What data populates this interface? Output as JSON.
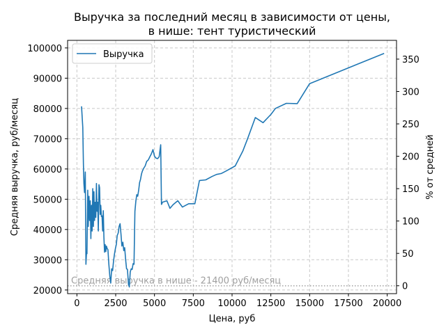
{
  "chart_data": {
    "type": "line",
    "title_line1": "Выручка за последний месяц в зависимости от цены,",
    "title_line2": "в нише: тент туристический",
    "xlabel": "Цена, руб",
    "ylabel": "Средняя выручка, руб/месяц",
    "ylabel_right": "% от средней",
    "xlim": [
      -600,
      20600
    ],
    "ylim": [
      18800,
      102500
    ],
    "x_ticks": [
      0,
      2500,
      5000,
      7500,
      10000,
      12500,
      15000,
      17500,
      20000
    ],
    "y_ticks": [
      20000,
      30000,
      40000,
      50000,
      60000,
      70000,
      80000,
      90000,
      100000
    ],
    "y2_ticks": [
      0,
      50,
      100,
      150,
      200,
      250,
      300,
      350
    ],
    "grid": true,
    "legend_position": "top-left",
    "average": {
      "value": 21400,
      "label": "Средняя выручка в нише - 21400 руб/месяц"
    },
    "series": [
      {
        "name": "Выручка",
        "color": "#1f77b4",
        "x": [
          300,
          380,
          420,
          450,
          490,
          540,
          580,
          620,
          650,
          700,
          730,
          780,
          820,
          860,
          900,
          940,
          980,
          1020,
          1060,
          1100,
          1140,
          1180,
          1220,
          1260,
          1300,
          1340,
          1380,
          1420,
          1460,
          1500,
          1540,
          1580,
          1620,
          1660,
          1700,
          1740,
          1780,
          1820,
          1860,
          1900,
          1950,
          2000,
          2060,
          2120,
          2180,
          2240,
          2300,
          2360,
          2420,
          2480,
          2540,
          2600,
          2660,
          2720,
          2780,
          2840,
          2900,
          2960,
          3020,
          3080,
          3140,
          3200,
          3260,
          3320,
          3380,
          3440,
          3500,
          3560,
          3620,
          3680,
          3740,
          3800,
          3860,
          3920,
          3980,
          4040,
          4100,
          4160,
          4220,
          4300,
          4400,
          4500,
          4600,
          4700,
          4800,
          4900,
          5000,
          5100,
          5200,
          5300,
          5400,
          5450,
          5480,
          5500,
          5800,
          6000,
          6200,
          6500,
          6800,
          7200,
          7600,
          7900,
          8300,
          8700,
          9000,
          9300,
          9600,
          10200,
          10700,
          11000,
          11500,
          12000,
          12500,
          12800,
          13500,
          14200,
          15000,
          19800
        ],
        "y": [
          80700,
          73700,
          61500,
          55200,
          52200,
          59000,
          28500,
          32500,
          32000,
          53000,
          41000,
          51000,
          43000,
          49500,
          37000,
          48000,
          39500,
          53500,
          41000,
          52500,
          43000,
          49000,
          44000,
          55200,
          46000,
          49000,
          39500,
          54800,
          53800,
          45000,
          48000,
          44300,
          44500,
          39500,
          46200,
          37500,
          32500,
          35000,
          32700,
          34500,
          33700,
          33300,
          28500,
          24500,
          22300,
          27000,
          26400,
          29500,
          31800,
          33700,
          35000,
          38000,
          38800,
          41000,
          41900,
          38500,
          34500,
          35800,
          33000,
          34000,
          30000,
          27000,
          26800,
          22000,
          21000,
          26000,
          27000,
          26800,
          28700,
          28500,
          46000,
          49500,
          51500,
          51000,
          53000,
          55500,
          56500,
          58300,
          59300,
          60200,
          61000,
          62500,
          63000,
          64000,
          65000,
          66400,
          64200,
          63600,
          63400,
          64000,
          68000,
          48300,
          48500,
          49000,
          49500,
          47000,
          48200,
          49500,
          47400,
          48500,
          48500,
          56200,
          56400,
          57500,
          58200,
          58500,
          59300,
          61000,
          66000,
          70000,
          77000,
          75300,
          78000,
          80000,
          81700,
          81600,
          88200,
          98200
        ]
      }
    ]
  }
}
